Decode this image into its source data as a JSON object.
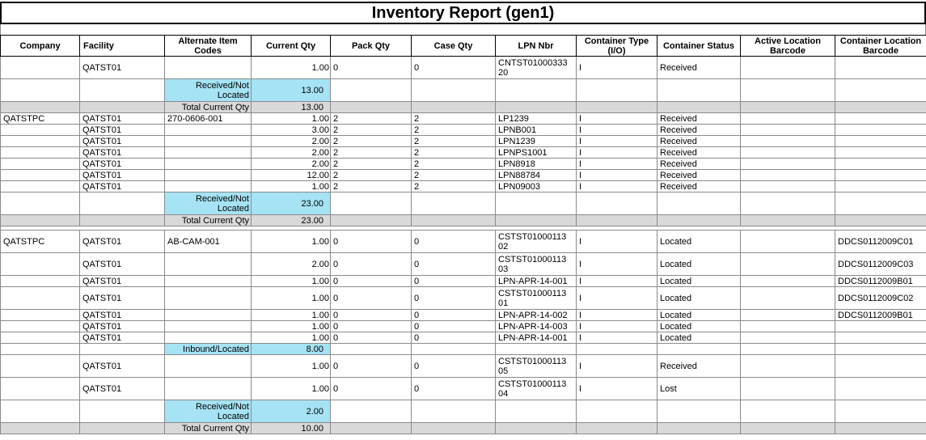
{
  "title": "Inventory Report (gen1)",
  "colors": {
    "highlight": "#A5E3F5",
    "total_row": "#D9D9D9",
    "grid": "#8a8a8a"
  },
  "columns": [
    {
      "key": "company",
      "label": "Company"
    },
    {
      "key": "facility",
      "label": "Facility"
    },
    {
      "key": "alt_item_codes",
      "label": "Alternate Item Codes"
    },
    {
      "key": "current_qty",
      "label": "Current Qty"
    },
    {
      "key": "pack_qty",
      "label": "Pack Qty"
    },
    {
      "key": "case_qty",
      "label": "Case Qty"
    },
    {
      "key": "lpn_nbr",
      "label": "LPN Nbr"
    },
    {
      "key": "container_type",
      "label": "Container Type (I/O)"
    },
    {
      "key": "container_status",
      "label": "Container Status"
    },
    {
      "key": "active_location_barcode",
      "label": "Active Location Barcode"
    },
    {
      "key": "container_location_barcode",
      "label": "Container Location Barcode"
    }
  ],
  "rows": [
    {
      "type": "data",
      "tall": true,
      "company": "",
      "facility": "QATST01",
      "alt_item_codes": "",
      "current_qty": "1.00",
      "pack_qty": "0",
      "case_qty": "0",
      "lpn_nbr": "CNTST0100033320",
      "container_type": "I",
      "container_status": "Received",
      "active_location_barcode": "",
      "container_location_barcode": ""
    },
    {
      "type": "summary",
      "tall": true,
      "label": "Received/Not Located",
      "qty": "13.00"
    },
    {
      "type": "total",
      "label": "Total Current Qty",
      "qty": "13.00"
    },
    {
      "type": "data",
      "tall": false,
      "company": "QATSTPC",
      "facility": "QATST01",
      "alt_item_codes": "270-0606-001",
      "current_qty": "1.00",
      "pack_qty": "2",
      "case_qty": "2",
      "lpn_nbr": "LP1239",
      "container_type": "I",
      "container_status": "Received",
      "active_location_barcode": "",
      "container_location_barcode": ""
    },
    {
      "type": "data",
      "tall": false,
      "company": "",
      "facility": "QATST01",
      "alt_item_codes": "",
      "current_qty": "3.00",
      "pack_qty": "2",
      "case_qty": "2",
      "lpn_nbr": "LPNB001",
      "container_type": "I",
      "container_status": "Received",
      "active_location_barcode": "",
      "container_location_barcode": ""
    },
    {
      "type": "data",
      "tall": false,
      "company": "",
      "facility": "QATST01",
      "alt_item_codes": "",
      "current_qty": "2.00",
      "pack_qty": "2",
      "case_qty": "2",
      "lpn_nbr": "LPN1239",
      "container_type": "I",
      "container_status": "Received",
      "active_location_barcode": "",
      "container_location_barcode": ""
    },
    {
      "type": "data",
      "tall": false,
      "company": "",
      "facility": "QATST01",
      "alt_item_codes": "",
      "current_qty": "2.00",
      "pack_qty": "2",
      "case_qty": "2",
      "lpn_nbr": "LPNPS1001",
      "container_type": "I",
      "container_status": "Received",
      "active_location_barcode": "",
      "container_location_barcode": ""
    },
    {
      "type": "data",
      "tall": false,
      "company": "",
      "facility": "QATST01",
      "alt_item_codes": "",
      "current_qty": "2.00",
      "pack_qty": "2",
      "case_qty": "2",
      "lpn_nbr": "LPN8918",
      "container_type": "I",
      "container_status": "Received",
      "active_location_barcode": "",
      "container_location_barcode": ""
    },
    {
      "type": "data",
      "tall": false,
      "company": "",
      "facility": "QATST01",
      "alt_item_codes": "",
      "current_qty": "12.00",
      "pack_qty": "2",
      "case_qty": "2",
      "lpn_nbr": "LPN88784",
      "container_type": "I",
      "container_status": "Received",
      "active_location_barcode": "",
      "container_location_barcode": ""
    },
    {
      "type": "data",
      "tall": false,
      "company": "",
      "facility": "QATST01",
      "alt_item_codes": "",
      "current_qty": "1.00",
      "pack_qty": "2",
      "case_qty": "2",
      "lpn_nbr": "LPN09003",
      "container_type": "I",
      "container_status": "Received",
      "active_location_barcode": "",
      "container_location_barcode": ""
    },
    {
      "type": "summary",
      "tall": true,
      "label": "Received/Not Located",
      "qty": "23.00"
    },
    {
      "type": "total",
      "label": "Total Current Qty",
      "qty": "23.00"
    },
    {
      "type": "spacer"
    },
    {
      "type": "data",
      "tall": true,
      "company": "QATSTPC",
      "facility": "QATST01",
      "alt_item_codes": "AB-CAM-001",
      "current_qty": "1.00",
      "pack_qty": "0",
      "case_qty": "0",
      "lpn_nbr": "CSTST0100011302",
      "container_type": "I",
      "container_status": "Located",
      "active_location_barcode": "",
      "container_location_barcode": "DDCS0112009C01"
    },
    {
      "type": "data",
      "tall": true,
      "company": "",
      "facility": "QATST01",
      "alt_item_codes": "",
      "current_qty": "2.00",
      "pack_qty": "0",
      "case_qty": "0",
      "lpn_nbr": "CSTST0100011303",
      "container_type": "I",
      "container_status": "Located",
      "active_location_barcode": "",
      "container_location_barcode": "DDCS0112009C03"
    },
    {
      "type": "data",
      "tall": false,
      "company": "",
      "facility": "QATST01",
      "alt_item_codes": "",
      "current_qty": "1.00",
      "pack_qty": "0",
      "case_qty": "0",
      "lpn_nbr": "LPN-APR-14-001",
      "container_type": "I",
      "container_status": "Located",
      "active_location_barcode": "",
      "container_location_barcode": "DDCS0112009B01"
    },
    {
      "type": "data",
      "tall": true,
      "company": "",
      "facility": "QATST01",
      "alt_item_codes": "",
      "current_qty": "1.00",
      "pack_qty": "0",
      "case_qty": "0",
      "lpn_nbr": "CSTST0100011301",
      "container_type": "I",
      "container_status": "Located",
      "active_location_barcode": "",
      "container_location_barcode": "DDCS0112009C02"
    },
    {
      "type": "data",
      "tall": false,
      "company": "",
      "facility": "QATST01",
      "alt_item_codes": "",
      "current_qty": "1.00",
      "pack_qty": "0",
      "case_qty": "0",
      "lpn_nbr": "LPN-APR-14-002",
      "container_type": "I",
      "container_status": "Located",
      "active_location_barcode": "",
      "container_location_barcode": "DDCS0112009B01"
    },
    {
      "type": "data",
      "tall": false,
      "company": "",
      "facility": "QATST01",
      "alt_item_codes": "",
      "current_qty": "1.00",
      "pack_qty": "0",
      "case_qty": "0",
      "lpn_nbr": "LPN-APR-14-003",
      "container_type": "I",
      "container_status": "Located",
      "active_location_barcode": "",
      "container_location_barcode": ""
    },
    {
      "type": "data",
      "tall": false,
      "company": "",
      "facility": "QATST01",
      "alt_item_codes": "",
      "current_qty": "1.00",
      "pack_qty": "0",
      "case_qty": "0",
      "lpn_nbr": "LPN-APR-14-001",
      "container_type": "I",
      "container_status": "Located",
      "active_location_barcode": "",
      "container_location_barcode": ""
    },
    {
      "type": "summary",
      "tall": false,
      "label": "Inbound/Located",
      "qty": "8.00"
    },
    {
      "type": "data",
      "tall": true,
      "company": "",
      "facility": "QATST01",
      "alt_item_codes": "",
      "current_qty": "1.00",
      "pack_qty": "0",
      "case_qty": "0",
      "lpn_nbr": "CSTST0100011305",
      "container_type": "I",
      "container_status": "Received",
      "active_location_barcode": "",
      "container_location_barcode": ""
    },
    {
      "type": "data",
      "tall": true,
      "company": "",
      "facility": "QATST01",
      "alt_item_codes": "",
      "current_qty": "1.00",
      "pack_qty": "0",
      "case_qty": "0",
      "lpn_nbr": "CSTST0100011304",
      "container_type": "I",
      "container_status": "Lost",
      "active_location_barcode": "",
      "container_location_barcode": ""
    },
    {
      "type": "summary",
      "tall": true,
      "label": "Received/Not Located",
      "qty": "2.00"
    },
    {
      "type": "total",
      "label": "Total Current Qty",
      "qty": "10.00"
    }
  ]
}
